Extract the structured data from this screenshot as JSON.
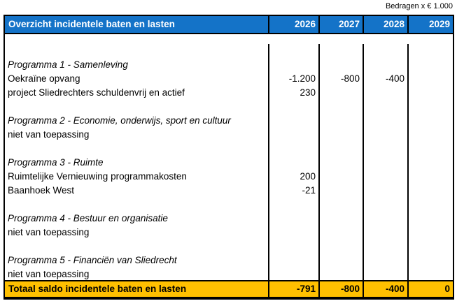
{
  "note": "Bedragen x € 1.000",
  "colors": {
    "header_bg": "#1473C8",
    "header_text": "#FFFFFF",
    "total_bg": "#FFC000",
    "border": "#000000"
  },
  "table": {
    "title": "Overzicht incidentele baten en lasten",
    "years": [
      "2026",
      "2027",
      "2028",
      "2029"
    ],
    "rows": [
      {
        "label": "",
        "italic": false,
        "blank": true,
        "values": [
          "",
          "",
          "",
          ""
        ]
      },
      {
        "label": "Programma 1 - Samenleving",
        "italic": true,
        "blank": false,
        "values": [
          "",
          "",
          "",
          ""
        ]
      },
      {
        "label": "Oekraïne opvang",
        "italic": false,
        "blank": false,
        "values": [
          "-1.200",
          "-800",
          "-400",
          ""
        ]
      },
      {
        "label": "project Sliedrechters schuldenvrij en actief",
        "italic": false,
        "blank": false,
        "values": [
          "230",
          "",
          "",
          ""
        ]
      },
      {
        "label": "",
        "italic": false,
        "blank": true,
        "values": [
          "",
          "",
          "",
          ""
        ]
      },
      {
        "label": "Programma 2 - Economie, onderwijs, sport en cultuur",
        "italic": true,
        "blank": false,
        "values": [
          "",
          "",
          "",
          ""
        ]
      },
      {
        "label": "niet van toepassing",
        "italic": false,
        "blank": false,
        "values": [
          "",
          "",
          "",
          ""
        ]
      },
      {
        "label": "",
        "italic": false,
        "blank": true,
        "values": [
          "",
          "",
          "",
          ""
        ]
      },
      {
        "label": "Programma 3 - Ruimte",
        "italic": true,
        "blank": false,
        "values": [
          "",
          "",
          "",
          ""
        ]
      },
      {
        "label": "Ruimtelijke Vernieuwing programmakosten",
        "italic": false,
        "blank": false,
        "values": [
          "200",
          "",
          "",
          ""
        ]
      },
      {
        "label": "Baanhoek West",
        "italic": false,
        "blank": false,
        "values": [
          "-21",
          "",
          "",
          ""
        ]
      },
      {
        "label": "",
        "italic": false,
        "blank": true,
        "values": [
          "",
          "",
          "",
          ""
        ]
      },
      {
        "label": "Programma 4 - Bestuur en organisatie",
        "italic": true,
        "blank": false,
        "values": [
          "",
          "",
          "",
          ""
        ]
      },
      {
        "label": "niet van toepassing",
        "italic": false,
        "blank": false,
        "values": [
          "",
          "",
          "",
          ""
        ]
      },
      {
        "label": "",
        "italic": false,
        "blank": true,
        "values": [
          "",
          "",
          "",
          ""
        ]
      },
      {
        "label": "Programma 5 - Financiën van Sliedrecht",
        "italic": true,
        "blank": false,
        "values": [
          "",
          "",
          "",
          ""
        ]
      },
      {
        "label": "niet van toepassing",
        "italic": false,
        "blank": false,
        "values": [
          "",
          "",
          "",
          ""
        ]
      },
      {
        "label": "",
        "italic": false,
        "blank": true,
        "values": [
          "",
          "",
          "",
          ""
        ]
      }
    ],
    "total": {
      "label": "Totaal saldo incidentele baten en lasten",
      "values": [
        "-791",
        "-800",
        "-400",
        "0"
      ]
    }
  }
}
